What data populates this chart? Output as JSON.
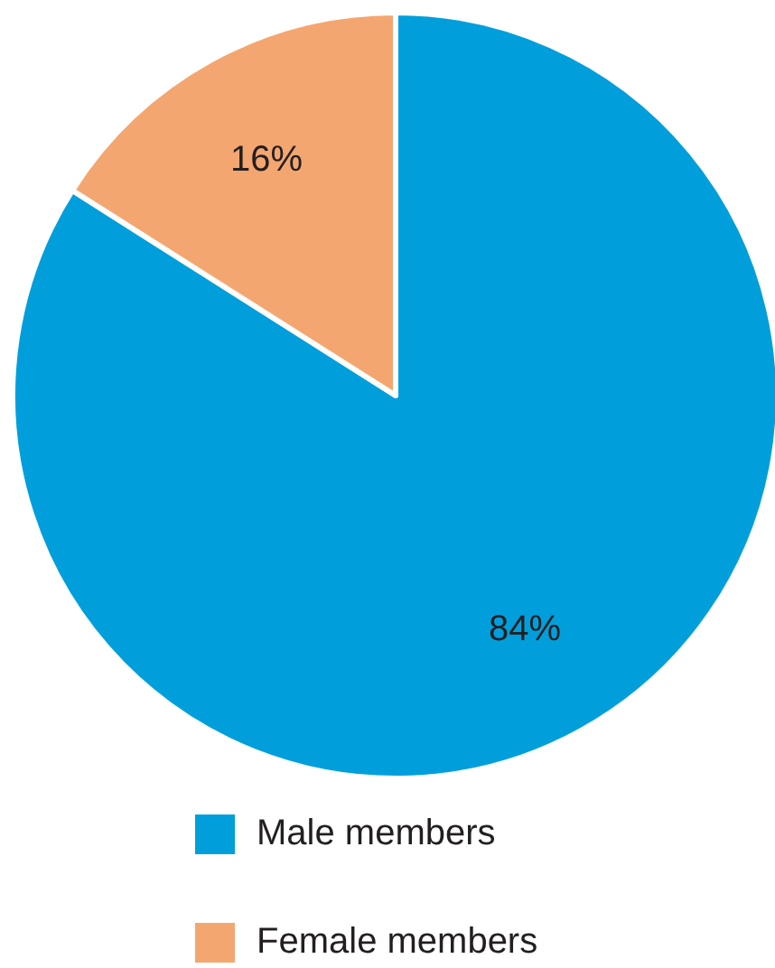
{
  "chart_data": {
    "type": "pie",
    "categories": [
      "Male members",
      "Female members"
    ],
    "values": [
      84,
      16
    ],
    "colors": [
      "#009fdb",
      "#f4a671"
    ],
    "value_labels": [
      "84%",
      "16%"
    ],
    "legend": "bottom"
  }
}
